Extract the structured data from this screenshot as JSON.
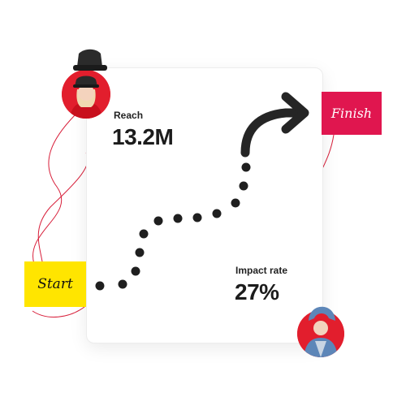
{
  "metrics": {
    "reach": {
      "label": "Reach",
      "value": "13.2M"
    },
    "impact": {
      "label": "Impact rate",
      "value": "27%"
    }
  },
  "tags": {
    "start": "Start",
    "finish": "Finish"
  },
  "avatars": {
    "top": "person-avatar",
    "bottom": "person-avatar"
  },
  "colors": {
    "start_tag": "#ffe500",
    "finish_tag": "#e0164f",
    "path_dots": "#1f1f1f",
    "connector_lines": "#d81f3a"
  }
}
